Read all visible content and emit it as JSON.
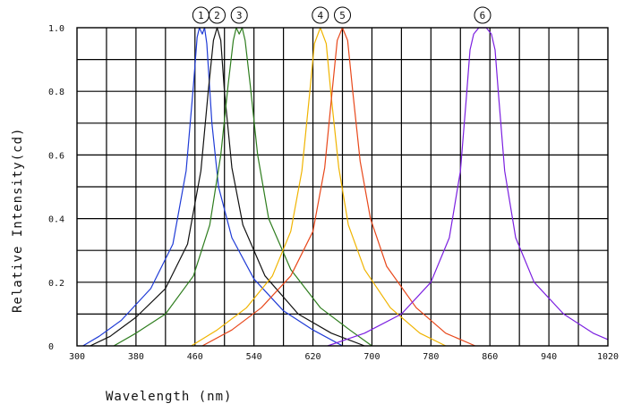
{
  "chart_data": {
    "type": "line",
    "title": "",
    "xlabel": "Wavelength (nm)",
    "ylabel": "Relative Intensity(cd)",
    "xlim": [
      300,
      1020
    ],
    "ylim": [
      0,
      1.0
    ],
    "x_ticks": [
      "300",
      "380",
      "460",
      "540",
      "620",
      "700",
      "780",
      "860",
      "940",
      "1020"
    ],
    "y_ticks": [
      "0",
      "0.2",
      "0.4",
      "0.6",
      "0.8",
      "1.0"
    ],
    "grid": true,
    "series": [
      {
        "label": "1",
        "color": "#1f3bd6",
        "peak": 468,
        "points": [
          [
            308,
            0
          ],
          [
            330,
            0.03
          ],
          [
            360,
            0.08
          ],
          [
            400,
            0.18
          ],
          [
            430,
            0.32
          ],
          [
            448,
            0.55
          ],
          [
            458,
            0.82
          ],
          [
            463,
            0.97
          ],
          [
            466,
            1.0
          ],
          [
            470,
            0.98
          ],
          [
            473,
            1.0
          ],
          [
            476,
            0.95
          ],
          [
            483,
            0.7
          ],
          [
            492,
            0.5
          ],
          [
            510,
            0.34
          ],
          [
            540,
            0.21
          ],
          [
            580,
            0.11
          ],
          [
            620,
            0.05
          ],
          [
            660,
            0
          ]
        ]
      },
      {
        "label": "2",
        "color": "#111111",
        "peak": 490,
        "points": [
          [
            318,
            0
          ],
          [
            345,
            0.03
          ],
          [
            380,
            0.09
          ],
          [
            420,
            0.18
          ],
          [
            450,
            0.32
          ],
          [
            468,
            0.55
          ],
          [
            478,
            0.8
          ],
          [
            485,
            0.96
          ],
          [
            490,
            1.0
          ],
          [
            495,
            0.96
          ],
          [
            500,
            0.8
          ],
          [
            510,
            0.56
          ],
          [
            525,
            0.38
          ],
          [
            555,
            0.22
          ],
          [
            600,
            0.1
          ],
          [
            645,
            0.04
          ],
          [
            690,
            0
          ]
        ]
      },
      {
        "label": "3",
        "color": "#2e7d1e",
        "peak": 520,
        "points": [
          [
            350,
            0
          ],
          [
            380,
            0.04
          ],
          [
            420,
            0.1
          ],
          [
            458,
            0.22
          ],
          [
            480,
            0.38
          ],
          [
            495,
            0.6
          ],
          [
            505,
            0.82
          ],
          [
            512,
            0.96
          ],
          [
            516,
            1.0
          ],
          [
            520,
            0.98
          ],
          [
            524,
            1.0
          ],
          [
            528,
            0.96
          ],
          [
            535,
            0.82
          ],
          [
            545,
            0.6
          ],
          [
            560,
            0.4
          ],
          [
            590,
            0.24
          ],
          [
            630,
            0.12
          ],
          [
            670,
            0.05
          ],
          [
            700,
            0
          ]
        ]
      },
      {
        "label": "4",
        "color": "#f0b400",
        "peak": 630,
        "points": [
          [
            455,
            0
          ],
          [
            490,
            0.05
          ],
          [
            530,
            0.12
          ],
          [
            565,
            0.22
          ],
          [
            590,
            0.36
          ],
          [
            605,
            0.55
          ],
          [
            615,
            0.78
          ],
          [
            622,
            0.95
          ],
          [
            630,
            1.0
          ],
          [
            638,
            0.95
          ],
          [
            645,
            0.78
          ],
          [
            655,
            0.56
          ],
          [
            668,
            0.38
          ],
          [
            690,
            0.24
          ],
          [
            725,
            0.12
          ],
          [
            765,
            0.04
          ],
          [
            800,
            0
          ]
        ]
      },
      {
        "label": "5",
        "color": "#e8481b",
        "peak": 660,
        "points": [
          [
            470,
            0
          ],
          [
            510,
            0.05
          ],
          [
            550,
            0.12
          ],
          [
            590,
            0.22
          ],
          [
            620,
            0.36
          ],
          [
            636,
            0.56
          ],
          [
            646,
            0.8
          ],
          [
            653,
            0.96
          ],
          [
            660,
            1.0
          ],
          [
            667,
            0.96
          ],
          [
            674,
            0.8
          ],
          [
            684,
            0.58
          ],
          [
            698,
            0.4
          ],
          [
            720,
            0.25
          ],
          [
            760,
            0.12
          ],
          [
            800,
            0.04
          ],
          [
            840,
            0
          ]
        ]
      },
      {
        "label": "6",
        "color": "#7b1fe0",
        "peak": 850,
        "points": [
          [
            640,
            0
          ],
          [
            690,
            0.04
          ],
          [
            740,
            0.1
          ],
          [
            780,
            0.2
          ],
          [
            805,
            0.34
          ],
          [
            820,
            0.55
          ],
          [
            828,
            0.78
          ],
          [
            833,
            0.93
          ],
          [
            838,
            0.98
          ],
          [
            845,
            1.0
          ],
          [
            855,
            1.0
          ],
          [
            862,
            0.98
          ],
          [
            867,
            0.93
          ],
          [
            872,
            0.78
          ],
          [
            880,
            0.55
          ],
          [
            895,
            0.34
          ],
          [
            920,
            0.2
          ],
          [
            960,
            0.1
          ],
          [
            1000,
            0.04
          ],
          [
            1020,
            0.02
          ]
        ]
      }
    ]
  }
}
